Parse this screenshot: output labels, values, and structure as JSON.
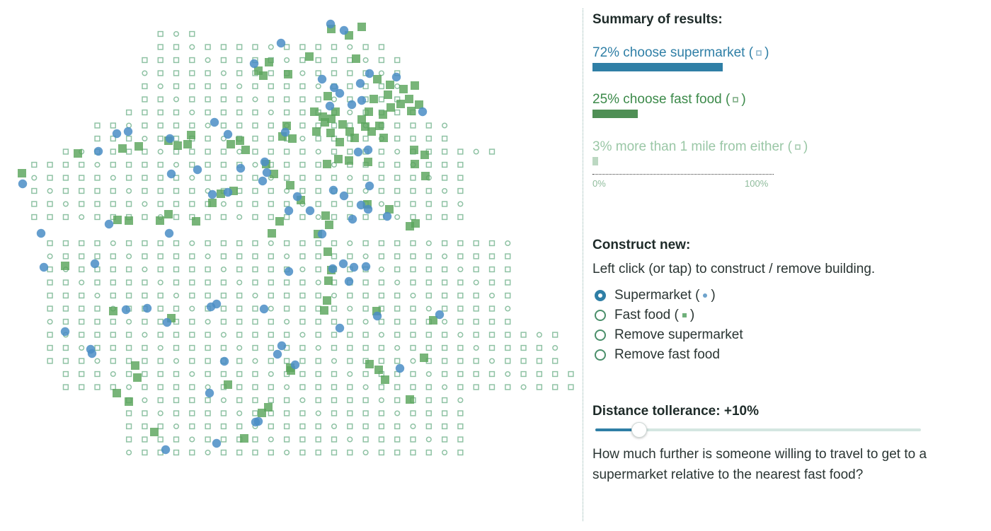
{
  "colors": {
    "supermarket": "#4a8dc6",
    "fast_food": "#5aa55c",
    "grid": "#8fc2a4",
    "far": "#bcd8c2",
    "accent": "#2f7fa6"
  },
  "summary": {
    "title": "Summary of results:",
    "supermarket": {
      "text": "72% choose supermarket",
      "open": "(",
      "close": ")",
      "percent": 72,
      "icon": "supermarket-cell-icon"
    },
    "fast_food": {
      "text": "25% choose fast food",
      "open": "(",
      "close": ")",
      "percent": 25,
      "icon": "fast-food-cell-icon"
    },
    "far": {
      "text": "3% more than 1 mile from either",
      "open": "(",
      "close": ")",
      "percent": 3,
      "icon": "far-cell-icon"
    },
    "scale_min": "0%",
    "scale_max": "100%"
  },
  "construct": {
    "title": "Construct new:",
    "instruction": "Left click (or tap) to construct / remove building.",
    "options": [
      {
        "label": "Supermarket",
        "open": "(",
        "close": ")",
        "icon": "supermarket-dot-icon",
        "checked": true
      },
      {
        "label": "Fast food",
        "open": "(",
        "close": ")",
        "icon": "fast-food-square-icon",
        "checked": false
      },
      {
        "label": "Remove supermarket",
        "checked": false
      },
      {
        "label": "Remove fast food",
        "checked": false
      }
    ]
  },
  "distance": {
    "title": "Distance tollerance: +10%",
    "value_percent": 10,
    "max_percent": 100,
    "question": "How much further is someone willing to travel to get to a supermarket relative to the nearest fast food?"
  },
  "map": {
    "supermarkets": [
      [
        397,
        61
      ],
      [
        467,
        34
      ],
      [
        486,
        43
      ],
      [
        359,
        90
      ],
      [
        455,
        112
      ],
      [
        480,
        132
      ],
      [
        509,
        118
      ],
      [
        472,
        124
      ],
      [
        466,
        150
      ],
      [
        497,
        148
      ],
      [
        511,
        142
      ],
      [
        522,
        104
      ],
      [
        560,
        109
      ],
      [
        597,
        158
      ],
      [
        322,
        190
      ],
      [
        303,
        173
      ],
      [
        165,
        189
      ],
      [
        181,
        186
      ],
      [
        139,
        214
      ],
      [
        240,
        196
      ],
      [
        242,
        246
      ],
      [
        279,
        240
      ],
      [
        340,
        238
      ],
      [
        374,
        229
      ],
      [
        377,
        244
      ],
      [
        371,
        256
      ],
      [
        520,
        212
      ],
      [
        506,
        215
      ],
      [
        522,
        263
      ],
      [
        486,
        277
      ],
      [
        471,
        269
      ],
      [
        300,
        275
      ],
      [
        322,
        272
      ],
      [
        403,
        187
      ],
      [
        420,
        278
      ],
      [
        408,
        298
      ],
      [
        438,
        298
      ],
      [
        510,
        290
      ],
      [
        520,
        296
      ],
      [
        547,
        306
      ],
      [
        498,
        310
      ],
      [
        455,
        331
      ],
      [
        485,
        373
      ],
      [
        470,
        380
      ],
      [
        493,
        398
      ],
      [
        408,
        384
      ],
      [
        500,
        378
      ],
      [
        517,
        377
      ],
      [
        239,
        330
      ],
      [
        154,
        317
      ],
      [
        58,
        330
      ],
      [
        62,
        378
      ],
      [
        134,
        373
      ],
      [
        208,
        436
      ],
      [
        178,
        438
      ],
      [
        306,
        430
      ],
      [
        298,
        434
      ],
      [
        373,
        437
      ],
      [
        480,
        464
      ],
      [
        533,
        447
      ],
      [
        621,
        445
      ],
      [
        92,
        469
      ],
      [
        128,
        494
      ],
      [
        130,
        500
      ],
      [
        236,
        456
      ],
      [
        398,
        489
      ],
      [
        392,
        501
      ],
      [
        317,
        511
      ],
      [
        417,
        516
      ],
      [
        565,
        521
      ],
      [
        296,
        556
      ],
      [
        361,
        597
      ],
      [
        365,
        596
      ],
      [
        306,
        627
      ],
      [
        234,
        636
      ],
      [
        32,
        260
      ]
    ],
    "fast_foods": [
      [
        468,
        41
      ],
      [
        493,
        50
      ],
      [
        511,
        38
      ],
      [
        503,
        83
      ],
      [
        380,
        88
      ],
      [
        365,
        100
      ],
      [
        407,
        105
      ],
      [
        437,
        80
      ],
      [
        463,
        136
      ],
      [
        533,
        112
      ],
      [
        551,
        120
      ],
      [
        570,
        126
      ],
      [
        586,
        121
      ],
      [
        578,
        140
      ],
      [
        592,
        148
      ],
      [
        541,
        162
      ],
      [
        552,
        152
      ],
      [
        581,
        157
      ],
      [
        566,
        147
      ],
      [
        548,
        134
      ],
      [
        528,
        140
      ],
      [
        521,
        158
      ],
      [
        511,
        169
      ],
      [
        536,
        178
      ],
      [
        494,
        186
      ],
      [
        484,
        176
      ],
      [
        468,
        168
      ],
      [
        459,
        173
      ],
      [
        501,
        195
      ],
      [
        480,
        201
      ],
      [
        467,
        188
      ],
      [
        444,
        158
      ],
      [
        405,
        178
      ],
      [
        399,
        193
      ],
      [
        372,
        107
      ],
      [
        462,
        232
      ],
      [
        478,
        225
      ],
      [
        493,
        227
      ],
      [
        520,
        229
      ],
      [
        585,
        212
      ],
      [
        600,
        219
      ],
      [
        586,
        232
      ],
      [
        601,
        249
      ],
      [
        542,
        195
      ],
      [
        525,
        186
      ],
      [
        516,
        179
      ],
      [
        474,
        158
      ],
      [
        456,
        165
      ],
      [
        447,
        186
      ],
      [
        413,
        196
      ],
      [
        238,
        199
      ],
      [
        251,
        206
      ],
      [
        265,
        204
      ],
      [
        270,
        191
      ],
      [
        196,
        207
      ],
      [
        173,
        210
      ],
      [
        110,
        217
      ],
      [
        31,
        245
      ],
      [
        339,
        199
      ],
      [
        326,
        204
      ],
      [
        347,
        212
      ],
      [
        300,
        287
      ],
      [
        312,
        274
      ],
      [
        330,
        270
      ],
      [
        410,
        262
      ],
      [
        425,
        283
      ],
      [
        376,
        232
      ],
      [
        387,
        246
      ],
      [
        550,
        296
      ],
      [
        519,
        289
      ],
      [
        460,
        305
      ],
      [
        465,
        318
      ],
      [
        449,
        331
      ],
      [
        384,
        330
      ],
      [
        395,
        313
      ],
      [
        579,
        320
      ],
      [
        587,
        316
      ],
      [
        463,
        356
      ],
      [
        468,
        382
      ],
      [
        464,
        397
      ],
      [
        462,
        425
      ],
      [
        458,
        439
      ],
      [
        532,
        440
      ],
      [
        238,
        303
      ],
      [
        226,
        312
      ],
      [
        277,
        313
      ],
      [
        182,
        312
      ],
      [
        166,
        311
      ],
      [
        92,
        376
      ],
      [
        160,
        440
      ],
      [
        242,
        450
      ],
      [
        612,
        453
      ],
      [
        599,
        506
      ],
      [
        522,
        515
      ],
      [
        535,
        523
      ],
      [
        544,
        537
      ],
      [
        191,
        517
      ],
      [
        194,
        534
      ],
      [
        322,
        544
      ],
      [
        182,
        568
      ],
      [
        165,
        556
      ],
      [
        379,
        576
      ],
      [
        370,
        584
      ],
      [
        345,
        620
      ],
      [
        218,
        611
      ],
      [
        579,
        565
      ],
      [
        411,
        524
      ],
      [
        410,
        520
      ]
    ]
  }
}
